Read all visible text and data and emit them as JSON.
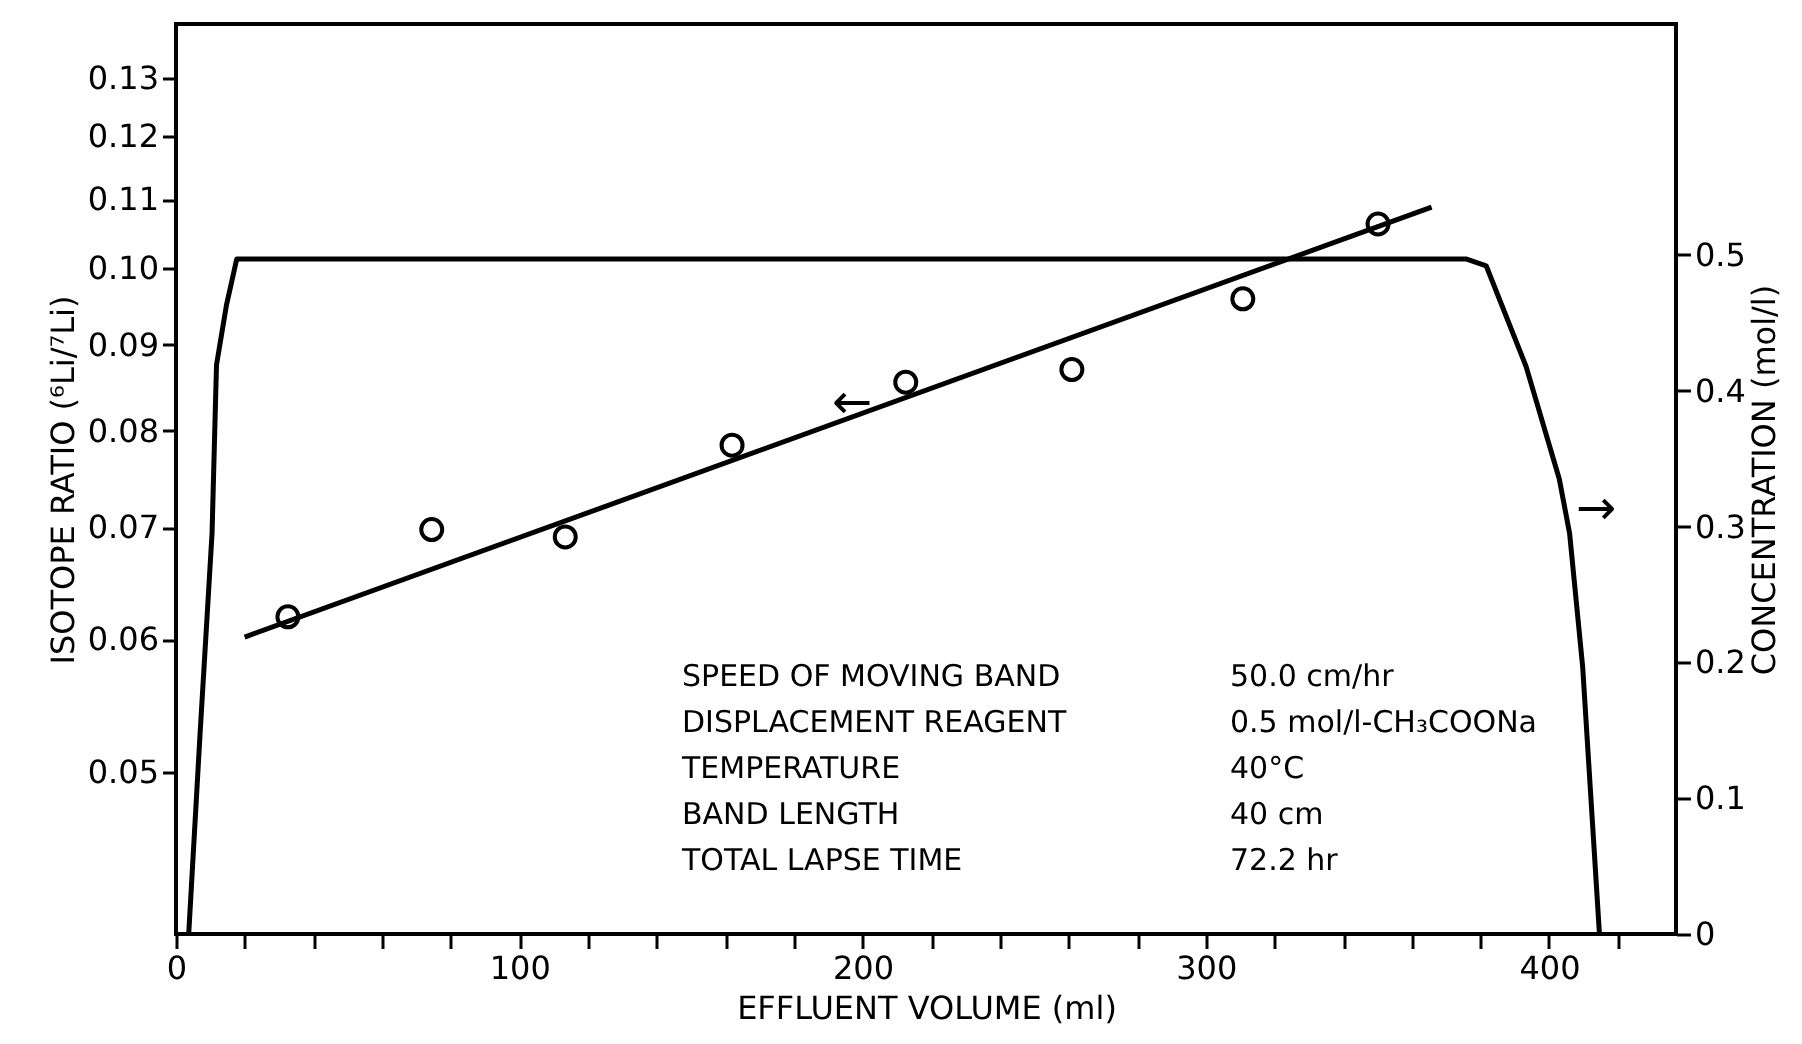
{
  "chart_data": {
    "type": "scatter",
    "xlabel": "EFFLUENT VOLUME (ml)",
    "ylabel": "ISOTOPE RATIO (⁶Li/⁷Li)",
    "y2label": "CONCENTRATION (mol/l)",
    "xlim": [
      0,
      437
    ],
    "xticks": [
      0,
      {
        "value": 20,
        "label": null
      },
      {
        "value": 40,
        "label": null
      },
      {
        "value": 60,
        "label": null
      },
      {
        "value": 80,
        "label": null
      },
      100,
      {
        "value": 120,
        "label": null
      },
      {
        "value": 140,
        "label": null
      },
      {
        "value": 160,
        "label": null
      },
      {
        "value": 180,
        "label": null
      },
      200,
      {
        "value": 220,
        "label": null
      },
      {
        "value": 240,
        "label": null
      },
      {
        "value": 260,
        "label": null
      },
      {
        "value": 280,
        "label": null
      },
      300,
      {
        "value": 320,
        "label": null
      },
      {
        "value": 340,
        "label": null
      },
      {
        "value": 360,
        "label": null
      },
      {
        "value": 380,
        "label": null
      },
      400,
      {
        "value": 420,
        "label": null
      }
    ],
    "ylim": [
      0.04,
      0.14
    ],
    "yticks": [
      0.05,
      0.06,
      0.07,
      0.08,
      0.09,
      {
        "value": 0.1,
        "label": "0.10"
      },
      0.11,
      0.12,
      0.13
    ],
    "log": "y",
    "y2lim": [
      0,
      0.67
    ],
    "y2ticks": [
      0,
      0.1,
      0.2,
      0.3,
      0.4,
      0.5
    ],
    "grid": false,
    "series": [
      {
        "marker": "circle",
        "color": "#000000",
        "x": [
          32.6,
          74.5,
          113.4,
          162,
          212.6,
          261,
          310.8,
          350.2
        ],
        "values": [
          0.0619,
          0.0698,
          0.0691,
          0.0784,
          0.0855,
          0.087,
          0.0959,
          0.1063
        ]
      },
      {
        "type": "line",
        "marker": "none",
        "color": "#000000",
        "x": [
          20,
          365.8
        ],
        "values": [
          0.0602,
          0.1088
        ]
      },
      {
        "type": "line",
        "marker": "none",
        "axis": "y2",
        "color": "#000000",
        "x": [
          3.7,
          7,
          10.5,
          11.8,
          14.7,
          17.7,
          375.8,
          381.7,
          393.3,
          403,
          406,
          409.8,
          414.7
        ],
        "values": [
          0,
          0.147,
          0.295,
          0.419,
          0.463,
          0.497,
          0.497,
          0.492,
          0.418,
          0.335,
          0.295,
          0.197,
          0
        ]
      }
    ],
    "annotations": [
      "SPEED OF MOVING BAND",
      "50.0 cm/hr",
      "DISPLACEMENT REAGENT",
      "0.5 mol/l-CH₃COONa",
      "TEMPERATURE",
      "40°C",
      "BAND LENGTH",
      "40 cm",
      "TOTAL LAPSE TIME",
      "72.2 hr",
      "→",
      {
        "text": "←",
        "x": 197,
        "y": 0.083
      }
    ]
  }
}
